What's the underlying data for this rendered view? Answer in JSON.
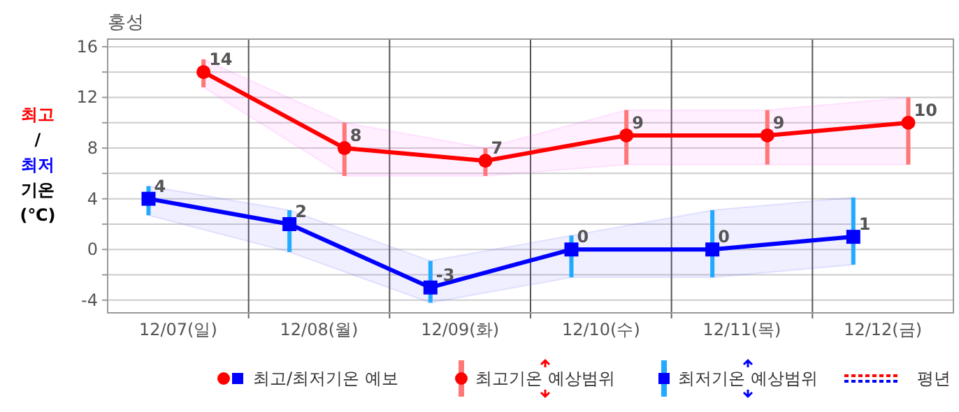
{
  "chart_data": {
    "type": "line",
    "title": "홍성",
    "ylabel": "최고/최저 기온 (℃)",
    "categories": [
      "12/07(일)",
      "12/08(월)",
      "12/09(화)",
      "12/10(수)",
      "12/11(목)",
      "12/12(금)"
    ],
    "ylim": [
      -5,
      16.6
    ],
    "yticks": [
      -4,
      {
        "value": -2,
        "label": null
      },
      0,
      {
        "value": 2,
        "label": null
      },
      4,
      {
        "value": 6,
        "label": null
      },
      8,
      {
        "value": 10,
        "label": null
      },
      12,
      {
        "value": 14,
        "label": null
      },
      16
    ],
    "grid": true,
    "legend": "bottom",
    "data_labels": true,
    "series": [
      {
        "name": "최고기온 예상범위",
        "color": "#ff0000",
        "marker": "circle",
        "values": [
          14,
          8,
          7,
          9,
          9,
          10
        ],
        "errors": [
          [
            12.8,
            15.0
          ],
          [
            5.8,
            10.0
          ],
          [
            5.8,
            8.0
          ],
          [
            6.7,
            11.0
          ],
          [
            6.7,
            11.0
          ],
          [
            6.7,
            12.0
          ]
        ],
        "lower": [
          12.8,
          5.8,
          5.8,
          6.7,
          6.7,
          6.7
        ],
        "upper": [
          15.0,
          10.0,
          8.0,
          11.0,
          11.0,
          12.0
        ]
      },
      {
        "name": "최저기온 예상범위",
        "color": "#0000ff",
        "marker": "square",
        "values": [
          4,
          2,
          -3,
          0,
          0,
          1
        ],
        "errors": [
          [
            2.7,
            5.0
          ],
          [
            -0.2,
            3.1
          ],
          [
            -4.2,
            -0.9
          ],
          [
            -2.2,
            1.1
          ],
          [
            -2.2,
            3.1
          ],
          [
            -1.2,
            4.1
          ]
        ],
        "lower": [
          2.7,
          -0.2,
          -4.2,
          -2.2,
          -2.2,
          -1.2
        ],
        "upper": [
          5.0,
          3.1,
          -0.9,
          1.1,
          3.1,
          4.1
        ]
      }
    ],
    "annotations": [
      "최고/최저기온 예보",
      "평년"
    ]
  }
}
